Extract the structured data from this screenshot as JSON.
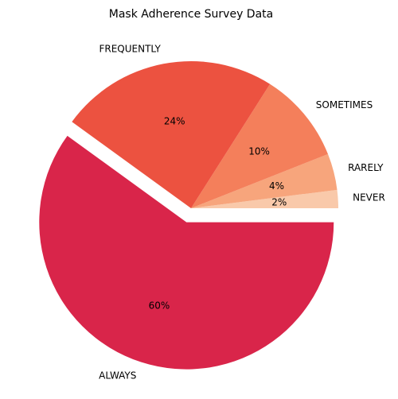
{
  "chart_data": {
    "type": "pie",
    "title": "Mask Adherence Survey Data",
    "start_angle_deg": 0,
    "direction": "counterclockwise",
    "slices": [
      {
        "label": "NEVER",
        "value": 2,
        "pct_label": "2%",
        "color": "#f9c9aa",
        "exploded": false
      },
      {
        "label": "RARELY",
        "value": 4,
        "pct_label": "4%",
        "color": "#f7a57c",
        "exploded": false
      },
      {
        "label": "SOMETIMES",
        "value": 10,
        "pct_label": "10%",
        "color": "#f47f5b",
        "exploded": false
      },
      {
        "label": "FREQUENTLY",
        "value": 24,
        "pct_label": "24%",
        "color": "#ec5240",
        "exploded": false
      },
      {
        "label": "ALWAYS",
        "value": 60,
        "pct_label": "60%",
        "color": "#d9254a",
        "exploded": true
      }
    ]
  }
}
